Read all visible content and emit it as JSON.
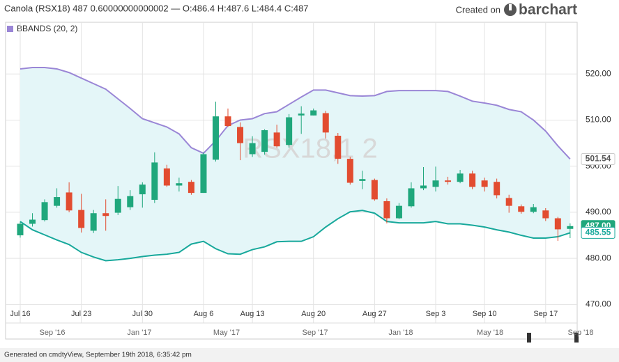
{
  "chart_data": {
    "type": "candlestick",
    "title": "Canola (RSX18) 487 0.60000000000002 — O:486.4 H:487.6 L:484.4 C:487",
    "brand_prefix": "Created on",
    "brand": "barchart",
    "watermark": "RSX18,1 2",
    "footer": "Generated on cmdtyView, September 19th 2018, 6:35:42 pm",
    "categories": [
      "Jul 16",
      null,
      null,
      null,
      null,
      "Jul 23",
      null,
      null,
      null,
      null,
      "Jul 30",
      null,
      null,
      null,
      null,
      "Aug 6",
      null,
      null,
      null,
      "Aug 13",
      null,
      null,
      null,
      null,
      "Aug 20",
      null,
      null,
      null,
      null,
      "Aug 27",
      null,
      null,
      null,
      null,
      "Sep 3",
      null,
      null,
      null,
      "Sep 10",
      null,
      null,
      null,
      null,
      "Sep 17",
      null,
      null
    ],
    "open": [
      485,
      487.5,
      488.3,
      491.4,
      494.3,
      490.5,
      486,
      489.8,
      489.9,
      491.1,
      493.9,
      492.7,
      499.5,
      495.8,
      496.6,
      494.2,
      501.4,
      510.8,
      508.5,
      502.6,
      503.1,
      507.3,
      504.6,
      511,
      511,
      511.5,
      506.6,
      501.6,
      496.8,
      497,
      492.4,
      488.7,
      491.3,
      495.2,
      495.5,
      496.9,
      496.6,
      498.4,
      496.9,
      496.6,
      493.1,
      491.3,
      490.1,
      490.4,
      488.7,
      486.4
    ],
    "high": [
      488,
      489.8,
      492.8,
      495.2,
      496.5,
      494,
      490.5,
      492.8,
      495.7,
      494.8,
      496.5,
      503,
      500.3,
      497.5,
      497,
      503,
      514,
      512.5,
      509.5,
      506.5,
      508,
      509,
      511.3,
      513,
      512.5,
      512,
      507.2,
      502,
      499,
      497.3,
      493,
      492,
      496.5,
      499.8,
      499.9,
      497.7,
      499.2,
      499,
      497.5,
      497.3,
      493.8,
      491.7,
      491.8,
      490.9,
      489,
      487.6
    ],
    "low": [
      484.5,
      486.9,
      488,
      491,
      490,
      485.6,
      485.5,
      486,
      489.4,
      490.5,
      491,
      492,
      495.5,
      494.5,
      493.8,
      494.2,
      501,
      508.5,
      501.3,
      502,
      502.5,
      504,
      504,
      507,
      511,
      506,
      500.5,
      496,
      495,
      492.5,
      487.6,
      488.5,
      491,
      494.8,
      494.5,
      496,
      496.3,
      495,
      494.5,
      493,
      489.9,
      489.7,
      489.8,
      488.1,
      483.8,
      484.4
    ],
    "close": [
      487.5,
      488.4,
      492.2,
      493.3,
      490.4,
      486.6,
      489.8,
      489.2,
      492.9,
      493.5,
      496,
      500.8,
      495.8,
      496.3,
      494.2,
      502.6,
      510.8,
      508.7,
      505,
      505,
      507.8,
      504.3,
      510.6,
      511.4,
      512.1,
      507.3,
      501.6,
      496.4,
      497.2,
      492.8,
      488.7,
      491.4,
      495.2,
      495.8,
      496.9,
      496.6,
      498.4,
      495.5,
      495.5,
      493.7,
      491.4,
      490.1,
      491.1,
      488.7,
      486.3,
      487
    ],
    "close_label": "487.00",
    "up_color": "#1fa77c",
    "down_color": "#e24c30",
    "indicator": {
      "name": "BBANDS (20, 2)",
      "upper_color": "#9a86d6",
      "lower_color": "#17a89b",
      "fill": "#e4f6f8",
      "upper": [
        521.1,
        521.4,
        521.4,
        521.1,
        520.3,
        519.1,
        517.9,
        516.7,
        514.6,
        512.5,
        510.3,
        509.4,
        508.5,
        507,
        504,
        502.8,
        505.5,
        508.8,
        510,
        510.3,
        511.4,
        511.8,
        513.4,
        515,
        516.5,
        516.5,
        515.9,
        515.3,
        515.2,
        515.3,
        516.2,
        516.4,
        516.4,
        516.4,
        516.4,
        516.2,
        515.2,
        514.1,
        513.7,
        513.2,
        512.3,
        511.8,
        510,
        507.6,
        504.4,
        501.54
      ],
      "lower": [
        488,
        486.2,
        485.1,
        484,
        483,
        481.3,
        480.3,
        479.5,
        479.7,
        480,
        480.4,
        480.7,
        480.9,
        481.3,
        483.1,
        483.7,
        482.1,
        481,
        480.9,
        481.9,
        482.5,
        483.6,
        483.7,
        483.7,
        484.7,
        486.8,
        488.6,
        490.1,
        490.4,
        489.8,
        488,
        487.7,
        487.7,
        487.7,
        488,
        487.5,
        487.5,
        487.2,
        486.8,
        486.2,
        485.7,
        485,
        484.4,
        484.4,
        484.7,
        485.55
      ],
      "upper_label": "501.54",
      "lower_label": "485.55"
    },
    "ylim": [
      469,
      530
    ],
    "yticks": [
      {
        "value": 470,
        "label": "470.00"
      },
      {
        "value": 480,
        "label": "480.00"
      },
      {
        "value": 490,
        "label": "490.00"
      },
      {
        "value": 500,
        "label": "500.00"
      },
      {
        "value": 510,
        "label": "510.00"
      },
      {
        "value": 520,
        "label": "520.00"
      }
    ],
    "grid": true,
    "navigator_labels": [
      "Sep '16",
      "Jan '17",
      "May '17",
      "Sep '17",
      "Jan '18",
      "May '18",
      "Sep '18"
    ]
  }
}
